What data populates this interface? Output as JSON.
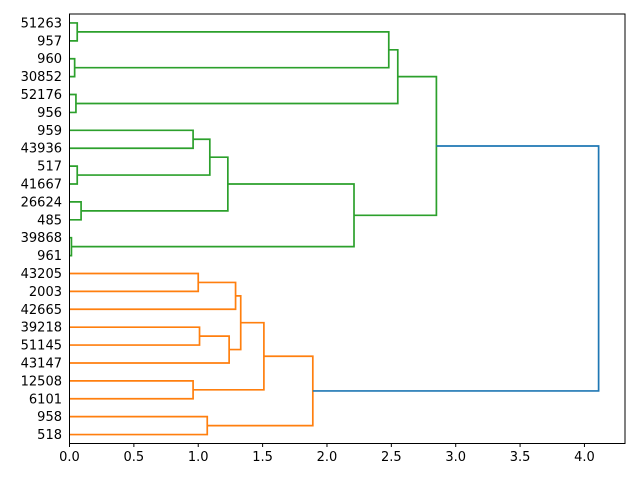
{
  "chart_data": {
    "type": "dendrogram",
    "orientation": "right",
    "title": "",
    "xlabel": "",
    "ylabel": "",
    "grid": false,
    "legend": false,
    "xlim": [
      0,
      4.315
    ],
    "x_ticks": [
      "0.0",
      "0.5",
      "1.0",
      "1.5",
      "2.0",
      "2.5",
      "3.0",
      "3.5",
      "4.0"
    ],
    "leaves": [
      "51263",
      "957",
      "960",
      "30852",
      "52176",
      "956",
      "959",
      "43936",
      "517",
      "41667",
      "26624",
      "485",
      "39868",
      "961",
      "43205",
      "2003",
      "42665",
      "39218",
      "51145",
      "43147",
      "12508",
      "6101",
      "958",
      "518"
    ],
    "colors": {
      "green": "#2ca02c",
      "orange": "#ff7f0e",
      "blue": "#1f77b4",
      "axis": "#000000",
      "label_text": "#000000"
    },
    "links": [
      {
        "id": "A1",
        "a": "L0",
        "b": "L1",
        "h": 0.06,
        "color": "green"
      },
      {
        "id": "A2",
        "a": "L2",
        "b": "L3",
        "h": 0.04,
        "color": "green"
      },
      {
        "id": "A3p",
        "a": "L4",
        "b": "L5",
        "h": 0.05,
        "color": "green"
      },
      {
        "id": "B1",
        "a": "L6",
        "b": "L7",
        "h": 0.96,
        "color": "green"
      },
      {
        "id": "B2",
        "a": "L8",
        "b": "L9",
        "h": 0.06,
        "color": "green"
      },
      {
        "id": "B4",
        "a": "L10",
        "b": "L11",
        "h": 0.09,
        "color": "green"
      },
      {
        "id": "B6",
        "a": "L12",
        "b": "L13",
        "h": 0.015,
        "color": "green"
      },
      {
        "id": "A12",
        "a": "A1",
        "b": "A2",
        "h": 2.48,
        "color": "green"
      },
      {
        "id": "A",
        "a": "A12",
        "b": "A3p",
        "h": 2.55,
        "color": "green"
      },
      {
        "id": "B3",
        "a": "B1",
        "b": "B2",
        "h": 1.09,
        "color": "green"
      },
      {
        "id": "B5",
        "a": "B3",
        "b": "B4",
        "h": 1.23,
        "color": "green"
      },
      {
        "id": "B7",
        "a": "B5",
        "b": "B6",
        "h": 2.21,
        "color": "green"
      },
      {
        "id": "G",
        "a": "A",
        "b": "B7",
        "h": 2.85,
        "color": "green"
      },
      {
        "id": "O1",
        "a": "L14",
        "b": "L15",
        "h": 1.0,
        "color": "orange"
      },
      {
        "id": "O2",
        "a": "O1",
        "b": "L16",
        "h": 1.29,
        "color": "orange"
      },
      {
        "id": "O3",
        "a": "L17",
        "b": "L18",
        "h": 1.01,
        "color": "orange"
      },
      {
        "id": "O4",
        "a": "O3",
        "b": "L19",
        "h": 1.24,
        "color": "orange"
      },
      {
        "id": "O5",
        "a": "O2",
        "b": "O4",
        "h": 1.33,
        "color": "orange"
      },
      {
        "id": "O6",
        "a": "L20",
        "b": "L21",
        "h": 0.96,
        "color": "orange"
      },
      {
        "id": "O7",
        "a": "O5",
        "b": "O6",
        "h": 1.51,
        "color": "orange"
      },
      {
        "id": "O8",
        "a": "L22",
        "b": "L23",
        "h": 1.07,
        "color": "orange"
      },
      {
        "id": "O9",
        "a": "O7",
        "b": "O8",
        "h": 1.89,
        "color": "orange"
      },
      {
        "id": "R",
        "a": "G",
        "b": "O9",
        "h": 4.11,
        "color": "blue"
      }
    ]
  }
}
